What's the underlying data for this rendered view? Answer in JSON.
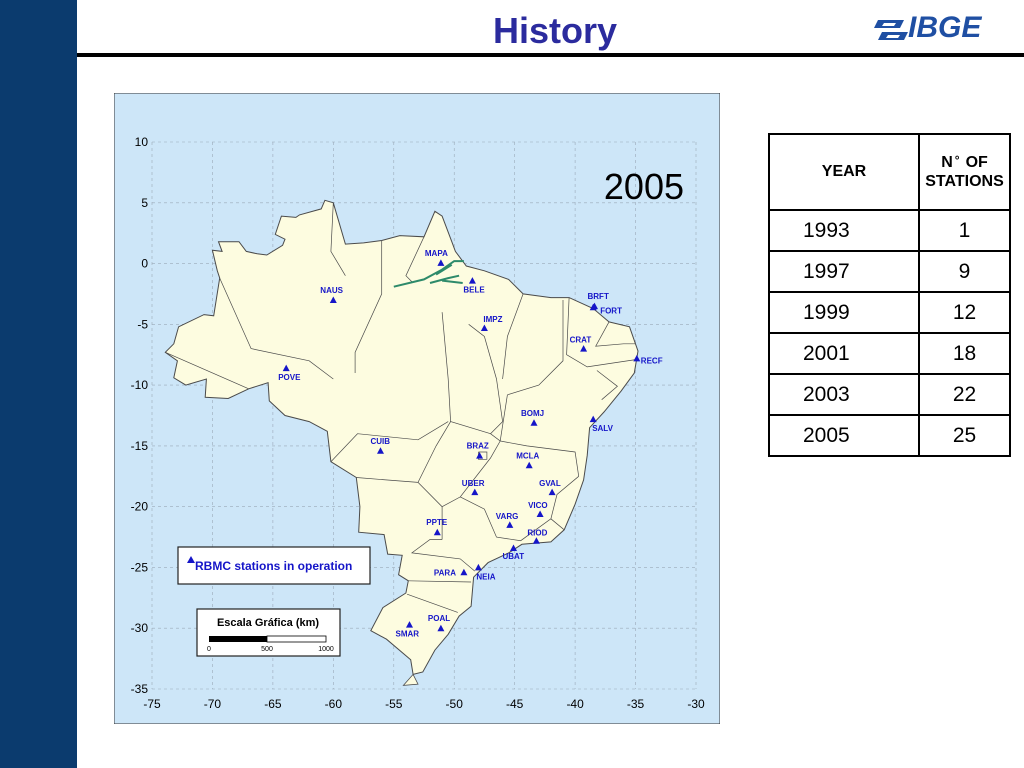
{
  "slide": {
    "title": "History",
    "logo_text": "IBGE"
  },
  "map": {
    "year_label": "2005",
    "legend_label": "RBMC stations in operation",
    "scale_title": "Escala Gráfica (km)",
    "scale_ticks": [
      "0",
      "500",
      "1000"
    ],
    "x_ticks": [
      "-75",
      "-70",
      "-65",
      "-60",
      "-55",
      "-50",
      "-45",
      "-40",
      "-35",
      "-30"
    ],
    "y_ticks": [
      "10",
      "5",
      "0",
      "-5",
      "-10",
      "-15",
      "-20",
      "-25",
      "-30",
      "-35"
    ],
    "station_color": "#1515c8",
    "stations": [
      {
        "name": "MAPA",
        "lon": -51.1,
        "lat": 0.05
      },
      {
        "name": "BELE",
        "lon": -48.5,
        "lat": -1.4
      },
      {
        "name": "NAUS",
        "lon": -60.0,
        "lat": -3.0
      },
      {
        "name": "BRFT",
        "lon": -38.4,
        "lat": -3.5
      },
      {
        "name": "FORT",
        "lon": -38.5,
        "lat": -3.6
      },
      {
        "name": "IMPZ",
        "lon": -47.5,
        "lat": -5.3
      },
      {
        "name": "CRAT",
        "lon": -39.3,
        "lat": -7.0
      },
      {
        "name": "RECF",
        "lon": -34.9,
        "lat": -7.8
      },
      {
        "name": "POVE",
        "lon": -63.9,
        "lat": -8.6
      },
      {
        "name": "BOMJ",
        "lon": -43.4,
        "lat": -13.1
      },
      {
        "name": "SALV",
        "lon": -38.5,
        "lat": -12.8
      },
      {
        "name": "CUIB",
        "lon": -56.1,
        "lat": -15.4
      },
      {
        "name": "BRAZ",
        "lon": -47.9,
        "lat": -15.8
      },
      {
        "name": "MCLA",
        "lon": -43.8,
        "lat": -16.6
      },
      {
        "name": "UBER",
        "lon": -48.3,
        "lat": -18.8
      },
      {
        "name": "GVAL",
        "lon": -41.9,
        "lat": -18.8
      },
      {
        "name": "VICO",
        "lon": -42.9,
        "lat": -20.6
      },
      {
        "name": "VARG",
        "lon": -45.4,
        "lat": -21.5
      },
      {
        "name": "PPTE",
        "lon": -51.4,
        "lat": -22.1
      },
      {
        "name": "RIOD",
        "lon": -43.2,
        "lat": -22.8
      },
      {
        "name": "UBAT",
        "lon": -45.1,
        "lat": -23.4
      },
      {
        "name": "PARA",
        "lon": -49.2,
        "lat": -25.4
      },
      {
        "name": "NEIA",
        "lon": -48.0,
        "lat": -25.0
      },
      {
        "name": "POAL",
        "lon": -51.1,
        "lat": -30.0
      },
      {
        "name": "SMAR",
        "lon": -53.7,
        "lat": -29.7
      }
    ]
  },
  "table": {
    "col1_header": "YEAR",
    "col2_header_n": "N",
    "col2_header_deg": "°",
    "col2_header_of": "OF",
    "col2_header_line2": "STATIONS",
    "rows": [
      {
        "year": "1993",
        "count": "1"
      },
      {
        "year": "1997",
        "count": "9"
      },
      {
        "year": "1999",
        "count": "12"
      },
      {
        "year": "2001",
        "count": "18"
      },
      {
        "year": "2003",
        "count": "22"
      },
      {
        "year": "2005",
        "count": "25"
      }
    ]
  }
}
